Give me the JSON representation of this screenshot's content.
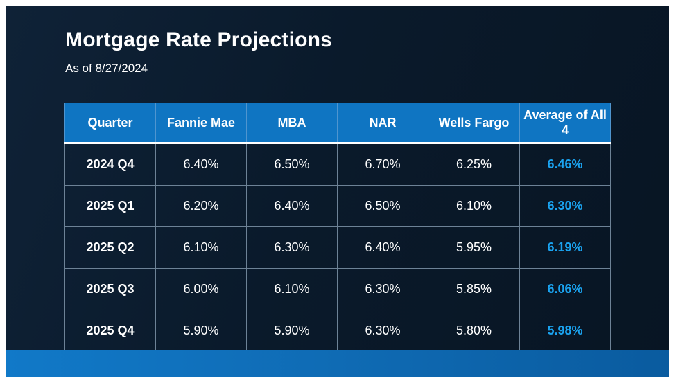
{
  "header": {
    "title": "Mortgage Rate Projections",
    "subtitle": "As of 8/27/2024"
  },
  "colors": {
    "background": "#0b1b2c",
    "header_fill": "#0f75c2",
    "average_text": "#1aa3f0",
    "bottom_bar": "#0f6bb4"
  },
  "chart_data": {
    "type": "table",
    "title": "Mortgage Rate Projections",
    "subtitle": "As of 8/27/2024",
    "columns": [
      "Quarter",
      "Fannie Mae",
      "MBA",
      "NAR",
      "Wells Fargo",
      "Average of All 4"
    ],
    "rows": [
      [
        "2024 Q4",
        "6.40%",
        "6.50%",
        "6.70%",
        "6.25%",
        "6.46%"
      ],
      [
        "2025 Q1",
        "6.20%",
        "6.40%",
        "6.50%",
        "6.10%",
        "6.30%"
      ],
      [
        "2025 Q2",
        "6.10%",
        "6.30%",
        "6.40%",
        "5.95%",
        "6.19%"
      ],
      [
        "2025 Q3",
        "6.00%",
        "6.10%",
        "6.30%",
        "5.85%",
        "6.06%"
      ],
      [
        "2025 Q4",
        "5.90%",
        "5.90%",
        "6.30%",
        "5.80%",
        "5.98%"
      ]
    ]
  }
}
